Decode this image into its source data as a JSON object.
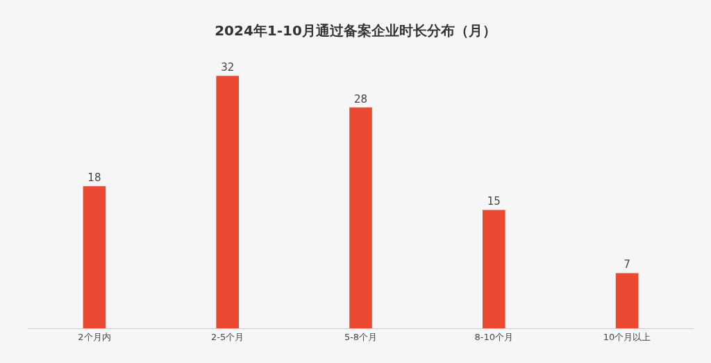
{
  "chart_data": {
    "type": "bar",
    "title": "2024年1-10月通过备案企业时长分布（月）",
    "categories": [
      "2个月内",
      "2-5个月",
      "5-8个月",
      "8-10个月",
      "10个月以上"
    ],
    "values": [
      18,
      32,
      28,
      15,
      7
    ],
    "color": "#ea4a32",
    "data_labels": true
  }
}
